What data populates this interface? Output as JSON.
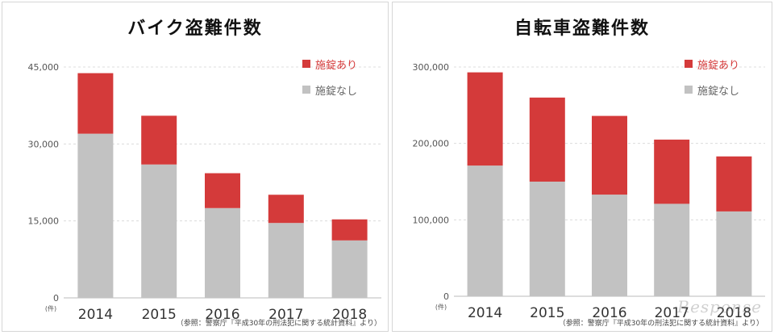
{
  "colors": {
    "locked": "#d43a3a",
    "unlocked": "#c2c2c2",
    "grid": "#dcdcdc",
    "axis_text": "#555555"
  },
  "legend": {
    "locked": "施錠あり",
    "unlocked": "施錠なし"
  },
  "unit_label": "(件)",
  "source": "（参照：警察庁『平成30年の刑法犯に関する統計資料』より）",
  "watermark": "Response",
  "chart_data": [
    {
      "type": "bar",
      "stacked": true,
      "title": "バイク盗難件数",
      "categories": [
        "2014",
        "2015",
        "2016",
        "2017",
        "2018"
      ],
      "series": [
        {
          "name": "施錠なし",
          "values": [
            32000,
            26000,
            17500,
            14600,
            11200
          ]
        },
        {
          "name": "施錠あり",
          "values": [
            11800,
            9500,
            6800,
            5500,
            4100
          ]
        }
      ],
      "ylim": [
        0,
        45000
      ],
      "yticks": [
        "0",
        "15,000",
        "30,000",
        "45,000"
      ],
      "ytick_values": [
        0,
        15000,
        30000,
        45000
      ],
      "grid": true,
      "legend_position": "top-right"
    },
    {
      "type": "bar",
      "stacked": true,
      "title": "自転車盗難件数",
      "categories": [
        "2014",
        "2015",
        "2016",
        "2017",
        "2018"
      ],
      "series": [
        {
          "name": "施錠なし",
          "values": [
            171000,
            150000,
            133000,
            121000,
            111000
          ]
        },
        {
          "name": "施錠あり",
          "values": [
            122000,
            110000,
            103000,
            84000,
            72000
          ]
        }
      ],
      "ylim": [
        0,
        300000
      ],
      "yticks": [
        "0",
        "100,000",
        "200,000",
        "300,000"
      ],
      "ytick_values": [
        0,
        100000,
        200000,
        300000
      ],
      "grid": true,
      "legend_position": "top-right"
    }
  ]
}
